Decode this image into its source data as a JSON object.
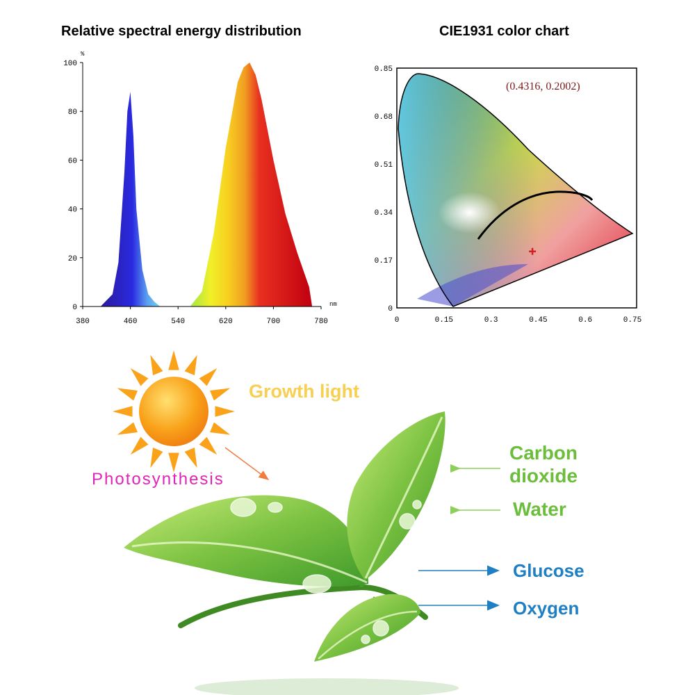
{
  "chart_data": [
    {
      "type": "area",
      "title": "Relative spectral energy distribution",
      "ylabel": "%",
      "xlabel": "nm",
      "xlim": [
        380,
        780
      ],
      "ylim": [
        0,
        100
      ],
      "x_ticks": [
        "380",
        "460",
        "540",
        "620",
        "700",
        "780"
      ],
      "y_ticks": [
        "0",
        "20",
        "40",
        "60",
        "80",
        "100"
      ],
      "x": [
        410,
        430,
        440,
        450,
        455,
        460,
        465,
        470,
        480,
        490,
        500,
        510,
        560,
        580,
        600,
        620,
        640,
        650,
        660,
        670,
        680,
        700,
        720,
        740,
        760,
        765
      ],
      "values": [
        0,
        5,
        18,
        55,
        80,
        88,
        70,
        40,
        15,
        5,
        2,
        0,
        0,
        6,
        30,
        65,
        92,
        98,
        100,
        95,
        85,
        60,
        38,
        22,
        8,
        0
      ]
    },
    {
      "type": "scatter",
      "title": "CIE1931 color chart",
      "xlim": [
        0,
        0.75
      ],
      "ylim": [
        0,
        0.85
      ],
      "x_ticks": [
        "0",
        "0.15",
        "0.3",
        "0.45",
        "0.6",
        "0.75"
      ],
      "y_ticks": [
        "0",
        "0.17",
        "0.34",
        "0.51",
        "0.68",
        "0.85"
      ],
      "point": {
        "x": 0.4316,
        "y": 0.2002
      },
      "point_label": "(0.4316, 0.2002)",
      "colors": {
        "point": "#d02020",
        "locus": "#000000"
      }
    }
  ],
  "illustration": {
    "growth_light": "Growth light",
    "photosynthesis": "Photosynthesis",
    "carbon_dioxide": [
      "Carbon",
      "dioxide"
    ],
    "water": "Water",
    "glucose": "Glucose",
    "oxygen": "Oxygen",
    "colors": {
      "sun": "#f9a21a",
      "leaf": "#7cc242",
      "input_label": "#6cbd3c",
      "output_label": "#1f7fc4",
      "photosynthesis": "#e024b8"
    }
  }
}
